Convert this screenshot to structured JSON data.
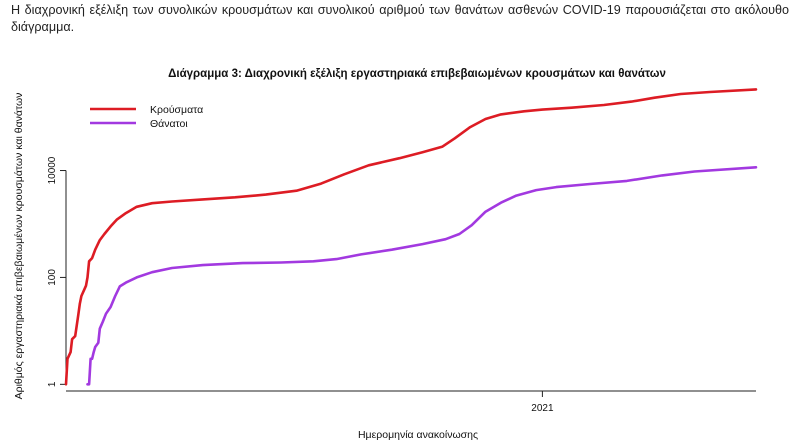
{
  "intro_text": "Η διαχρονική εξέλιξη των συνολικών κρουσμάτων και συνολικού αριθμού των θανάτων ασθενών COVID-19 παρουσιάζεται στο ακόλουθο διάγραμμα.",
  "chart_data": {
    "type": "line",
    "title": "Διάγραμμα 3: Διαχρονική εξέλιξη εργαστηριακά επιβεβαιωμένων κρουσμάτων και θανάτων",
    "xlabel": "Ημερομηνία ανακοίνωσης",
    "ylabel": "Αριθμός εργαστηριακά επιβεβαιωμένων κρουσμάτων και θανάτων",
    "y_scale": "log",
    "ylim": [
      0.75,
      350000
    ],
    "yticks": [
      1,
      100,
      10000
    ],
    "ytick_labels": [
      "1",
      "100",
      "10000"
    ],
    "x_range": [
      "2020-02-26",
      "2021-05-20"
    ],
    "xticks": [
      {
        "x": "2021-01-01",
        "label": "2021"
      }
    ],
    "grid": false,
    "legend_position": "top-left",
    "series": [
      {
        "name": "Κρούσματα",
        "color": "#dd1c24",
        "points": [
          [
            "2020-02-26",
            1
          ],
          [
            "2020-02-27",
            3
          ],
          [
            "2020-02-29",
            4
          ],
          [
            "2020-03-01",
            7
          ],
          [
            "2020-03-03",
            8
          ],
          [
            "2020-03-05",
            20
          ],
          [
            "2020-03-06",
            32
          ],
          [
            "2020-03-07",
            45
          ],
          [
            "2020-03-09",
            60
          ],
          [
            "2020-03-10",
            70
          ],
          [
            "2020-03-11",
            100
          ],
          [
            "2020-03-12",
            200
          ],
          [
            "2020-03-14",
            230
          ],
          [
            "2020-03-16",
            330
          ],
          [
            "2020-03-19",
            500
          ],
          [
            "2020-03-22",
            650
          ],
          [
            "2020-03-26",
            900
          ],
          [
            "2020-03-30",
            1200
          ],
          [
            "2020-04-05",
            1600
          ],
          [
            "2020-04-12",
            2100
          ],
          [
            "2020-04-22",
            2450
          ],
          [
            "2020-05-05",
            2630
          ],
          [
            "2020-05-25",
            2880
          ],
          [
            "2020-06-15",
            3150
          ],
          [
            "2020-07-05",
            3550
          ],
          [
            "2020-07-25",
            4200
          ],
          [
            "2020-08-10",
            5700
          ],
          [
            "2020-08-25",
            8500
          ],
          [
            "2020-09-10",
            12500
          ],
          [
            "2020-09-30",
            17000
          ],
          [
            "2020-10-15",
            22000
          ],
          [
            "2020-10-28",
            28000
          ],
          [
            "2020-11-05",
            40000
          ],
          [
            "2020-11-15",
            65000
          ],
          [
            "2020-11-25",
            92000
          ],
          [
            "2020-12-05",
            112000
          ],
          [
            "2020-12-20",
            128000
          ],
          [
            "2021-01-01",
            138000
          ],
          [
            "2021-01-20",
            150000
          ],
          [
            "2021-02-10",
            168000
          ],
          [
            "2021-02-28",
            195000
          ],
          [
            "2021-03-15",
            230000
          ],
          [
            "2021-04-01",
            270000
          ],
          [
            "2021-04-20",
            295000
          ],
          [
            "2021-05-20",
            330000
          ]
        ]
      },
      {
        "name": "Θάνατοι",
        "color": "#a239e0",
        "points": [
          [
            "2020-03-11",
            1
          ],
          [
            "2020-03-12",
            1
          ],
          [
            "2020-03-13",
            3
          ],
          [
            "2020-03-14",
            3
          ],
          [
            "2020-03-15",
            4
          ],
          [
            "2020-03-16",
            5
          ],
          [
            "2020-03-18",
            6
          ],
          [
            "2020-03-19",
            11
          ],
          [
            "2020-03-21",
            15
          ],
          [
            "2020-03-23",
            21
          ],
          [
            "2020-03-26",
            28
          ],
          [
            "2020-03-29",
            45
          ],
          [
            "2020-04-01",
            68
          ],
          [
            "2020-04-05",
            80
          ],
          [
            "2020-04-12",
            100
          ],
          [
            "2020-04-22",
            125
          ],
          [
            "2020-05-05",
            150
          ],
          [
            "2020-05-25",
            170
          ],
          [
            "2020-06-20",
            185
          ],
          [
            "2020-07-15",
            190
          ],
          [
            "2020-08-05",
            200
          ],
          [
            "2020-08-20",
            220
          ],
          [
            "2020-09-05",
            270
          ],
          [
            "2020-09-25",
            330
          ],
          [
            "2020-10-15",
            420
          ],
          [
            "2020-10-30",
            520
          ],
          [
            "2020-11-08",
            650
          ],
          [
            "2020-11-16",
            950
          ],
          [
            "2020-11-25",
            1700
          ],
          [
            "2020-12-05",
            2500
          ],
          [
            "2020-12-15",
            3400
          ],
          [
            "2020-12-28",
            4300
          ],
          [
            "2021-01-10",
            4900
          ],
          [
            "2021-02-01",
            5600
          ],
          [
            "2021-02-25",
            6400
          ],
          [
            "2021-03-20",
            8100
          ],
          [
            "2021-04-10",
            9600
          ],
          [
            "2021-05-20",
            11500
          ]
        ]
      }
    ]
  }
}
